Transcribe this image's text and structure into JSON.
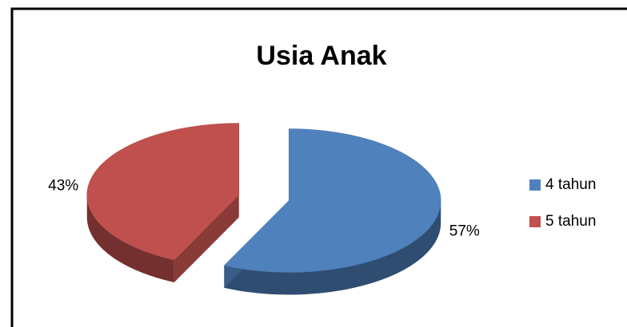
{
  "chart_data": {
    "type": "pie",
    "title": "Usia Anak",
    "categories": [
      "4 tahun",
      "5 tahun"
    ],
    "values": [
      57,
      43
    ],
    "value_labels": [
      "57%",
      "43%"
    ],
    "colors": [
      "#4f81bd",
      "#c0504d"
    ],
    "legend": "right"
  }
}
